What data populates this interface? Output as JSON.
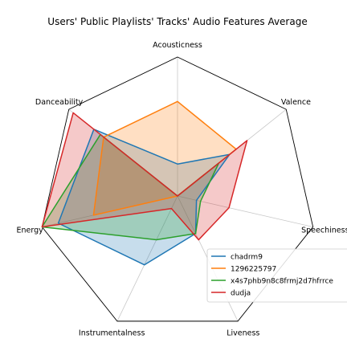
{
  "chart_data": {
    "type": "radar",
    "title": "Users' Public Playlists' Tracks' Audio Features Average",
    "axes": [
      "Acousticness",
      "Valence",
      "Speechiness",
      "Liveness",
      "Instrumentalness",
      "Energy",
      "Danceability"
    ],
    "range": [
      0,
      1
    ],
    "grid": true,
    "legend_position": "bottom-right",
    "series": [
      {
        "name": "chadrm9",
        "color": "#1f77b4",
        "values": [
          0.23,
          0.48,
          0.14,
          0.3,
          0.55,
          0.88,
          0.77
        ]
      },
      {
        "name": "1296225797",
        "color": "#ff7f0e",
        "values": [
          0.68,
          0.54,
          0.0,
          0.0,
          0.0,
          0.62,
          0.68
        ]
      },
      {
        "name": "x4s7phb9n8c8frmj2d7hfrrce",
        "color": "#2ca02c",
        "values": [
          0.0,
          0.38,
          0.17,
          0.3,
          0.35,
          1.0,
          0.71
        ]
      },
      {
        "name": "dudja",
        "color": "#d62728",
        "values": [
          0.0,
          0.64,
          0.38,
          0.35,
          0.1,
          1.0,
          0.96
        ]
      }
    ]
  }
}
